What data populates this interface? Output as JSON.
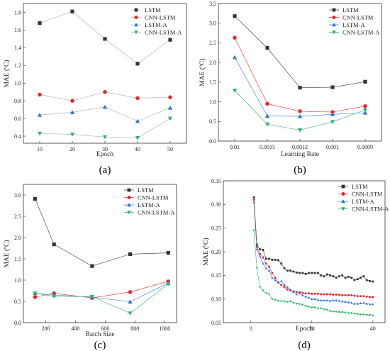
{
  "colors": {
    "LSTM": "#333333",
    "CNN-LSTM": "#e8262a",
    "LSTM-A": "#2a73d9",
    "CNN-LSTM-A": "#2fb36a",
    "connector_grey": "#b5b5b5"
  },
  "chart_data": [
    {
      "panel": "(a)",
      "type": "line",
      "xlabel": "Epoch",
      "ylabel": "MAE (ºC)",
      "x_ticks": [
        "10",
        "20",
        "30",
        "40",
        "50"
      ],
      "y_ticks": [
        "0.4",
        "0.6",
        "0.8",
        "1.0",
        "1.2",
        "1.4",
        "1.6",
        "1.8"
      ],
      "xlim": [
        5,
        55
      ],
      "ylim": [
        0.32,
        1.9
      ],
      "categorical_x": false,
      "grid": false,
      "legend_position": "top-right",
      "connector": "grey",
      "series": [
        {
          "name": "LSTM",
          "marker": "square",
          "x": [
            10,
            20,
            30,
            40,
            50
          ],
          "y": [
            1.68,
            1.81,
            1.5,
            1.22,
            1.49
          ]
        },
        {
          "name": "CNN-LSTM",
          "marker": "circle",
          "x": [
            10,
            20,
            30,
            40,
            50
          ],
          "y": [
            0.87,
            0.8,
            0.9,
            0.83,
            0.84
          ]
        },
        {
          "name": "LSTM-A",
          "marker": "triangle-up",
          "x": [
            10,
            20,
            30,
            40,
            50
          ],
          "y": [
            0.64,
            0.67,
            0.73,
            0.57,
            0.72
          ]
        },
        {
          "name": "CNN-LSTM-A",
          "marker": "triangle-down",
          "x": [
            10,
            20,
            30,
            40,
            50
          ],
          "y": [
            0.43,
            0.42,
            0.39,
            0.38,
            0.6
          ]
        }
      ]
    },
    {
      "panel": "(b)",
      "type": "line",
      "xlabel": "Learning Rate",
      "ylabel": "MAE (ºC)",
      "x_ticks": [
        "0.01",
        "0.0015",
        "0.0012",
        "0.001",
        "0.0009"
      ],
      "y_ticks": [
        "0.0",
        "0.5",
        "1.0",
        "1.5",
        "2.0",
        "2.5",
        "3.0",
        "3.5"
      ],
      "ylim": [
        0,
        3.5
      ],
      "categorical_x": true,
      "grid": false,
      "legend_position": "top-right",
      "connector": "colored",
      "series": [
        {
          "name": "LSTM",
          "marker": "square",
          "values": [
            3.18,
            2.37,
            1.36,
            1.37,
            1.51
          ]
        },
        {
          "name": "CNN-LSTM",
          "marker": "circle",
          "values": [
            2.63,
            0.95,
            0.76,
            0.74,
            0.89
          ]
        },
        {
          "name": "LSTM-A",
          "marker": "triangle-up",
          "values": [
            2.13,
            0.64,
            0.63,
            0.68,
            0.72
          ]
        },
        {
          "name": "CNN-LSTM-A",
          "marker": "triangle-down",
          "values": [
            1.29,
            0.43,
            0.28,
            0.49,
            0.79
          ]
        }
      ]
    },
    {
      "panel": "(c)",
      "type": "line",
      "xlabel": "Batch Size",
      "ylabel": "MAE (ºC)",
      "x_ticks": [
        "200",
        "400",
        "600",
        "800",
        "1000"
      ],
      "y_ticks": [
        "0.0",
        "0.5",
        "1.0",
        "1.5",
        "2.0",
        "2.5",
        "3.0"
      ],
      "xlim": [
        50,
        1080
      ],
      "ylim": [
        0,
        3.25
      ],
      "categorical_x": false,
      "grid": false,
      "legend_position": "top-right",
      "connector": "colored",
      "series": [
        {
          "name": "LSTM",
          "marker": "square",
          "x": [
            128,
            256,
            512,
            768,
            1024
          ],
          "y": [
            2.91,
            1.84,
            1.33,
            1.61,
            1.64
          ]
        },
        {
          "name": "CNN-LSTM",
          "marker": "circle",
          "x": [
            128,
            256,
            512,
            768,
            1024
          ],
          "y": [
            0.6,
            0.69,
            0.58,
            0.72,
            0.97
          ]
        },
        {
          "name": "LSTM-A",
          "marker": "triangle-up",
          "x": [
            128,
            256,
            512,
            768,
            1024
          ],
          "y": [
            0.69,
            0.65,
            0.6,
            0.49,
            0.93
          ]
        },
        {
          "name": "CNN-LSTM-A",
          "marker": "triangle-down",
          "x": [
            128,
            256,
            512,
            768,
            1024
          ],
          "y": [
            0.69,
            0.62,
            0.61,
            0.22,
            0.91
          ]
        }
      ]
    },
    {
      "panel": "(d)",
      "type": "line",
      "xlabel": "Epoch",
      "ylabel": "MAE (ºC)",
      "x_ticks": [
        "0",
        "20",
        "40"
      ],
      "y_ticks": [
        "0.05",
        "0.10",
        "0.15",
        "0.20",
        "0.25",
        "0.30",
        "0.35"
      ],
      "xlim": [
        -9,
        44
      ],
      "ylim": [
        0.05,
        0.35
      ],
      "categorical_x": false,
      "grid": false,
      "legend_position": "top-right",
      "connector": "colored",
      "series": [
        {
          "name": "LSTM",
          "marker": "square",
          "x": [
            1,
            2,
            3,
            4,
            5,
            6,
            7,
            8,
            9,
            10,
            11,
            12,
            13,
            14,
            15,
            16,
            17,
            18,
            19,
            20,
            21,
            22,
            23,
            24,
            25,
            26,
            27,
            28,
            29,
            30,
            31,
            32,
            33,
            34,
            35,
            36,
            37,
            38,
            39,
            40
          ],
          "y": [
            0.315,
            0.215,
            0.205,
            0.204,
            0.185,
            0.185,
            0.183,
            0.183,
            0.182,
            0.175,
            0.165,
            0.16,
            0.16,
            0.158,
            0.156,
            0.155,
            0.155,
            0.153,
            0.155,
            0.155,
            0.155,
            0.155,
            0.15,
            0.148,
            0.152,
            0.15,
            0.148,
            0.145,
            0.148,
            0.15,
            0.145,
            0.147,
            0.145,
            0.14,
            0.142,
            0.145,
            0.148,
            0.14,
            0.138,
            0.137
          ]
        },
        {
          "name": "CNN-LSTM",
          "marker": "circle",
          "x": [
            1,
            2,
            3,
            4,
            5,
            6,
            7,
            8,
            9,
            10,
            11,
            12,
            13,
            14,
            15,
            16,
            17,
            18,
            19,
            20,
            21,
            22,
            23,
            24,
            25,
            26,
            27,
            28,
            29,
            30,
            31,
            32,
            33,
            34,
            35,
            36,
            37,
            38,
            39,
            40
          ],
          "y": [
            0.31,
            0.21,
            0.195,
            0.188,
            0.175,
            0.168,
            0.155,
            0.145,
            0.135,
            0.13,
            0.125,
            0.12,
            0.118,
            0.116,
            0.115,
            0.114,
            0.113,
            0.112,
            0.112,
            0.111,
            0.111,
            0.111,
            0.11,
            0.11,
            0.11,
            0.11,
            0.109,
            0.109,
            0.109,
            0.108,
            0.108,
            0.108,
            0.108,
            0.107,
            0.106,
            0.106,
            0.106,
            0.105,
            0.104,
            0.104
          ]
        },
        {
          "name": "LSTM-A",
          "marker": "triangle-up",
          "x": [
            1,
            2,
            3,
            4,
            5,
            6,
            7,
            8,
            9,
            10,
            11,
            12,
            13,
            14,
            15,
            16,
            17,
            18,
            19,
            20,
            21,
            22,
            23,
            24,
            25,
            26,
            27,
            28,
            29,
            30,
            31,
            32,
            33,
            34,
            35,
            36,
            37,
            38,
            39,
            40
          ],
          "y": [
            0.305,
            0.205,
            0.19,
            0.175,
            0.165,
            0.16,
            0.145,
            0.14,
            0.135,
            0.138,
            0.13,
            0.125,
            0.12,
            0.115,
            0.11,
            0.112,
            0.108,
            0.105,
            0.103,
            0.1,
            0.1,
            0.098,
            0.097,
            0.097,
            0.097,
            0.096,
            0.097,
            0.097,
            0.096,
            0.095,
            0.094,
            0.093,
            0.092,
            0.09,
            0.09,
            0.091,
            0.092,
            0.09,
            0.089,
            0.089
          ]
        },
        {
          "name": "CNN-LSTM-A",
          "marker": "triangle-down",
          "x": [
            1,
            2,
            3,
            4,
            5,
            6,
            7,
            8,
            9,
            10,
            11,
            12,
            13,
            14,
            15,
            16,
            17,
            18,
            19,
            20,
            21,
            22,
            23,
            24,
            25,
            26,
            27,
            28,
            29,
            30,
            31,
            32,
            33,
            34,
            35,
            36,
            37,
            38,
            39,
            40
          ],
          "y": [
            0.245,
            0.165,
            0.125,
            0.118,
            0.112,
            0.11,
            0.1,
            0.098,
            0.096,
            0.095,
            0.095,
            0.094,
            0.095,
            0.092,
            0.09,
            0.089,
            0.088,
            0.085,
            0.083,
            0.082,
            0.082,
            0.08,
            0.08,
            0.078,
            0.077,
            0.074,
            0.073,
            0.073,
            0.072,
            0.072,
            0.071,
            0.07,
            0.07,
            0.069,
            0.068,
            0.067,
            0.067,
            0.066,
            0.066,
            0.065
          ]
        }
      ]
    }
  ]
}
